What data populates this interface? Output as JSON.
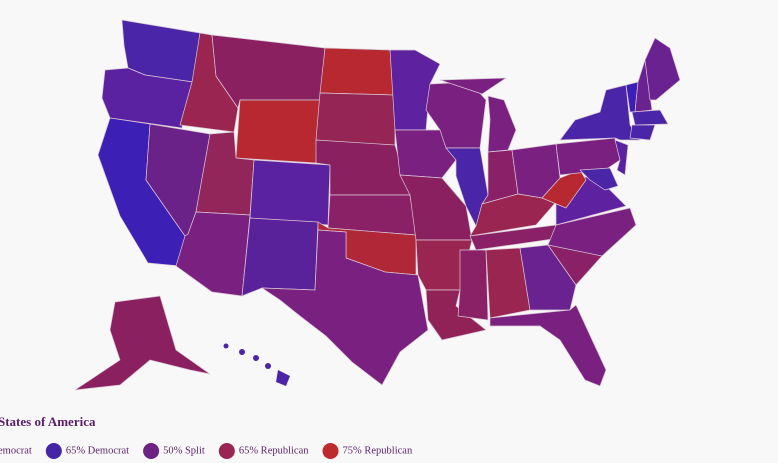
{
  "map": {
    "title": "States of America",
    "legend": [
      {
        "label": "emocrat"
      },
      {
        "label": "65% Democrat",
        "color": "#4526a6"
      },
      {
        "label": "50% Split",
        "color": "#6b2283"
      },
      {
        "label": "65% Republican",
        "color": "#9a2552"
      },
      {
        "label": "75% Republican",
        "color": "#bf2a2e"
      }
    ]
  }
}
